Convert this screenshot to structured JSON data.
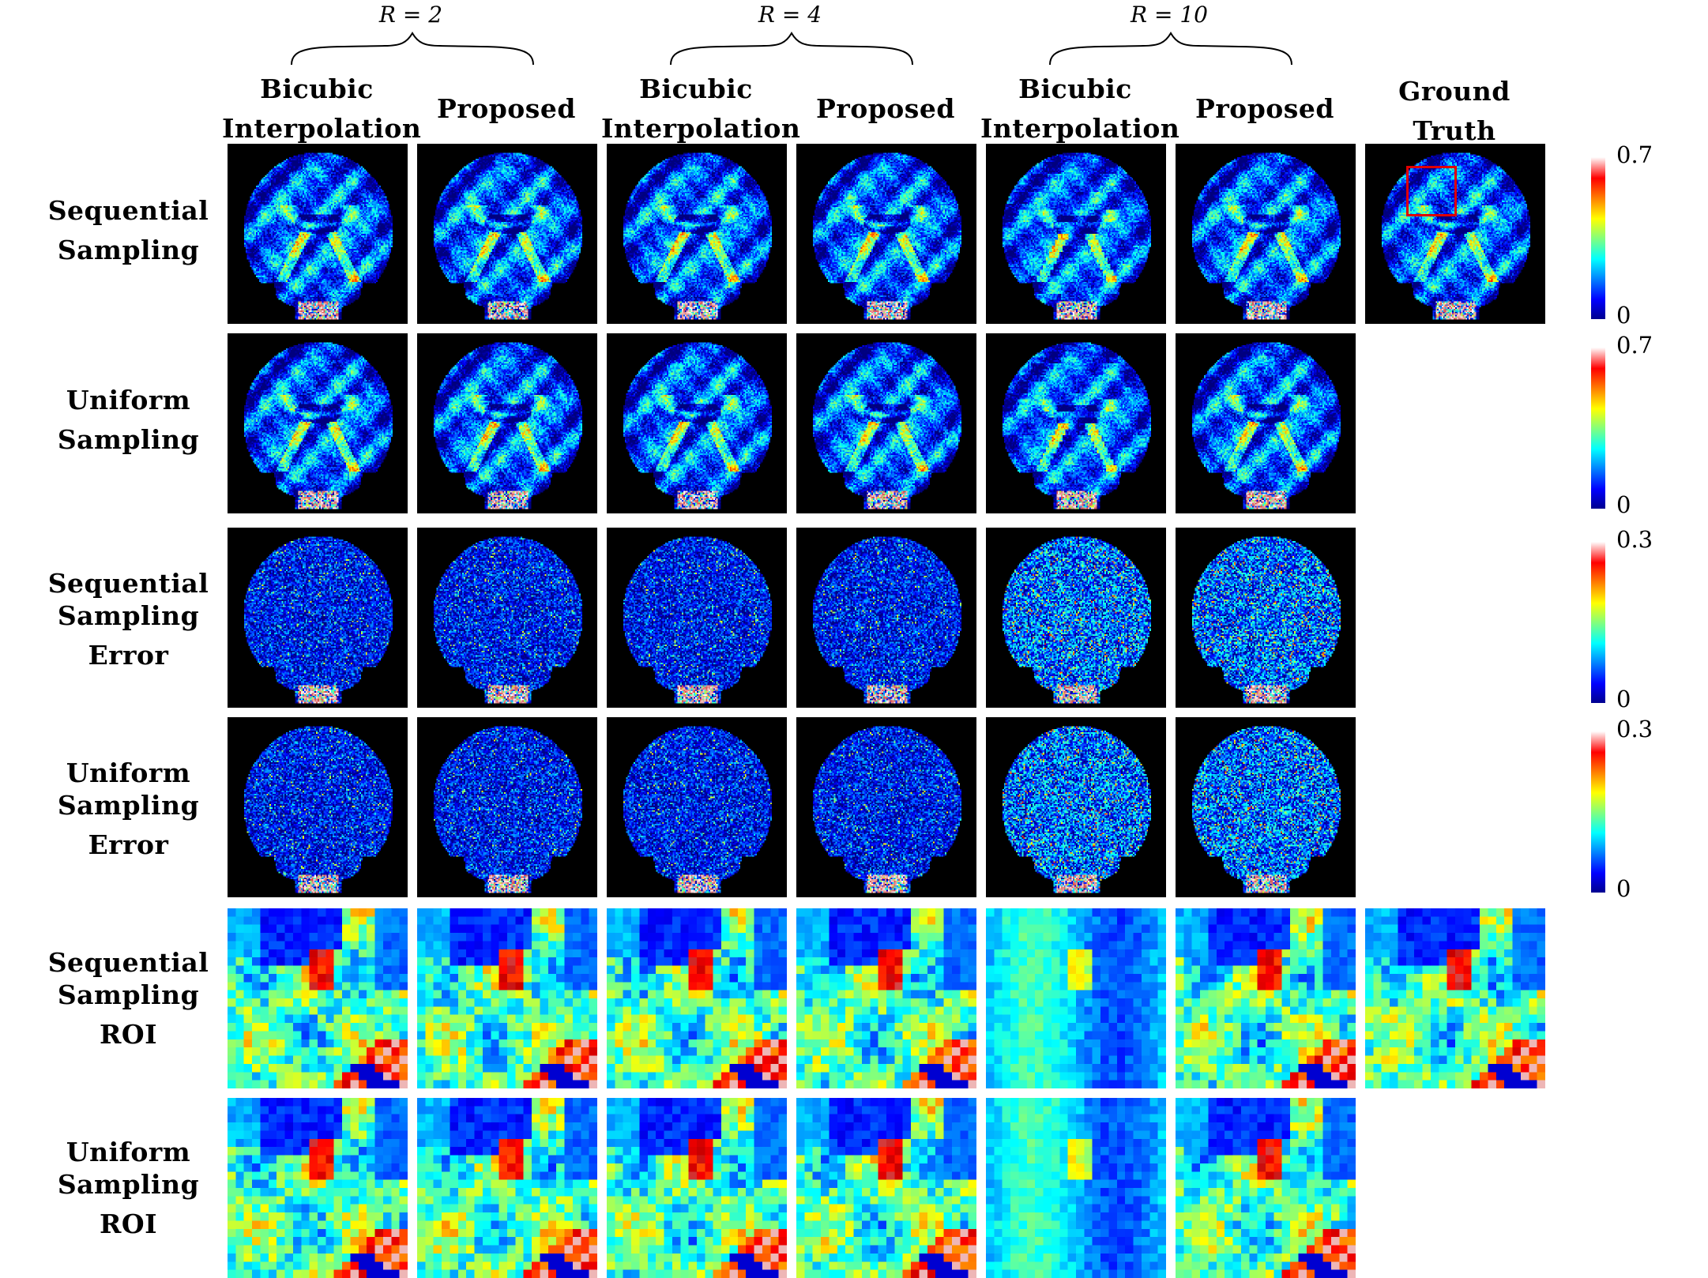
{
  "group_headers": [
    {
      "label": "R = 2"
    },
    {
      "label": "R = 4"
    },
    {
      "label": "R = 10"
    }
  ],
  "column_headers": [
    {
      "lines": [
        "Bicubic",
        "Interpolation"
      ]
    },
    {
      "lines": [
        "Proposed"
      ]
    },
    {
      "lines": [
        "Bicubic",
        "Interpolation"
      ]
    },
    {
      "lines": [
        "Proposed"
      ]
    },
    {
      "lines": [
        "Bicubic",
        "Interpolation"
      ]
    },
    {
      "lines": [
        "Proposed"
      ]
    },
    {
      "lines": [
        "Ground",
        "Truth"
      ]
    }
  ],
  "row_headers": [
    {
      "lines": [
        "Sequential",
        "Sampling"
      ]
    },
    {
      "lines": [
        "Uniform",
        "Sampling"
      ]
    },
    {
      "lines": [
        "Sequential",
        "Sampling",
        "Error"
      ]
    },
    {
      "lines": [
        "Uniform",
        "Sampling",
        "Error"
      ]
    },
    {
      "lines": [
        "Sequential",
        "Sampling",
        "ROI"
      ]
    },
    {
      "lines": [
        "Uniform",
        "Sampling",
        "ROI"
      ]
    }
  ],
  "colorbars": [
    {
      "max": "0.7",
      "min": "0"
    },
    {
      "max": "0.7",
      "min": "0"
    },
    {
      "max": "0.3",
      "min": "0"
    },
    {
      "max": "0.3",
      "min": "0"
    }
  ],
  "colormap": "jet",
  "roi_box_color": "#e00000"
}
